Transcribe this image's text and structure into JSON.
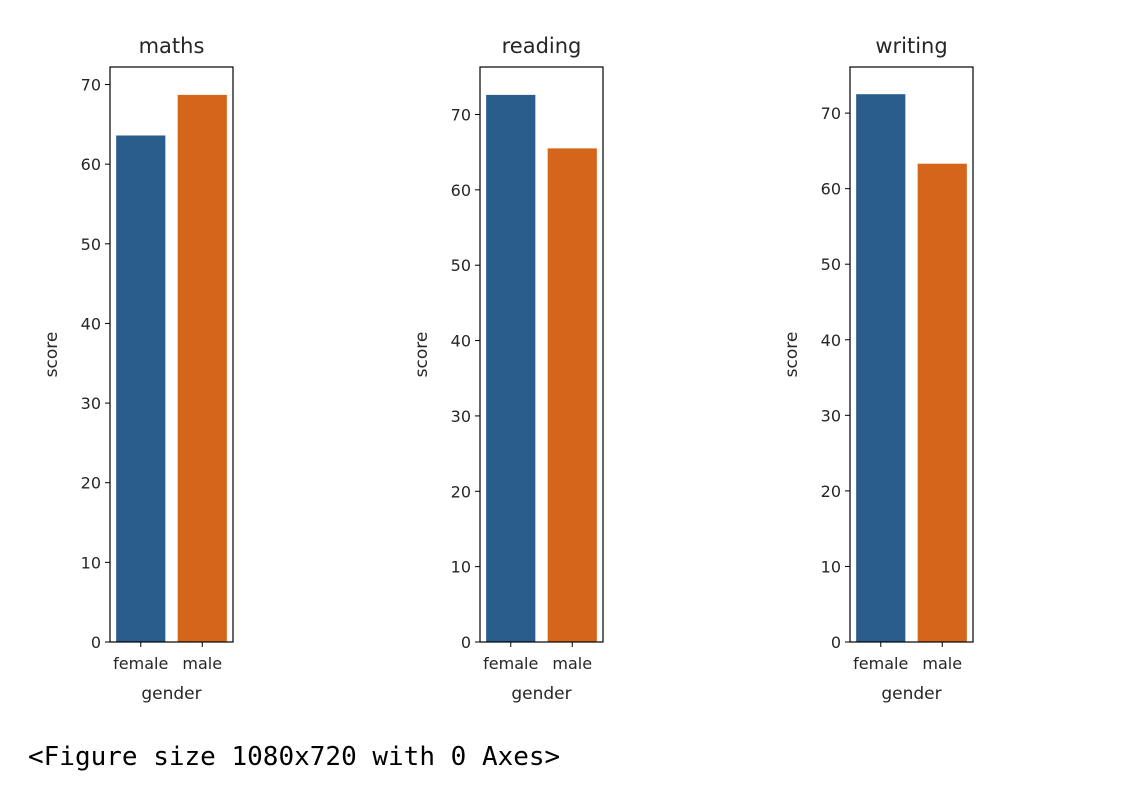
{
  "chart_data": [
    {
      "type": "bar",
      "title": "maths",
      "xlabel": "gender",
      "ylabel": "score",
      "categories": [
        "female",
        "male"
      ],
      "values": [
        63.6,
        68.7
      ],
      "colors": [
        "#2b5d8c",
        "#d4651a"
      ],
      "ylim": [
        0,
        72.2
      ],
      "yticks": [
        0,
        10,
        20,
        30,
        40,
        50,
        60,
        70
      ],
      "grid": false
    },
    {
      "type": "bar",
      "title": "reading",
      "xlabel": "gender",
      "ylabel": "score",
      "categories": [
        "female",
        "male"
      ],
      "values": [
        72.6,
        65.5
      ],
      "colors": [
        "#2b5d8c",
        "#d4651a"
      ],
      "ylim": [
        0,
        76.3
      ],
      "yticks": [
        0,
        10,
        20,
        30,
        40,
        50,
        60,
        70
      ],
      "grid": false
    },
    {
      "type": "bar",
      "title": "writing",
      "xlabel": "gender",
      "ylabel": "score",
      "categories": [
        "female",
        "male"
      ],
      "values": [
        72.5,
        63.3
      ],
      "colors": [
        "#2b5d8c",
        "#d4651a"
      ],
      "ylim": [
        0,
        76.1
      ],
      "yticks": [
        0,
        10,
        20,
        30,
        40,
        50,
        60,
        70
      ],
      "grid": false
    }
  ],
  "output": {
    "text": "<Figure size 1080x720 with 0 Axes>"
  }
}
